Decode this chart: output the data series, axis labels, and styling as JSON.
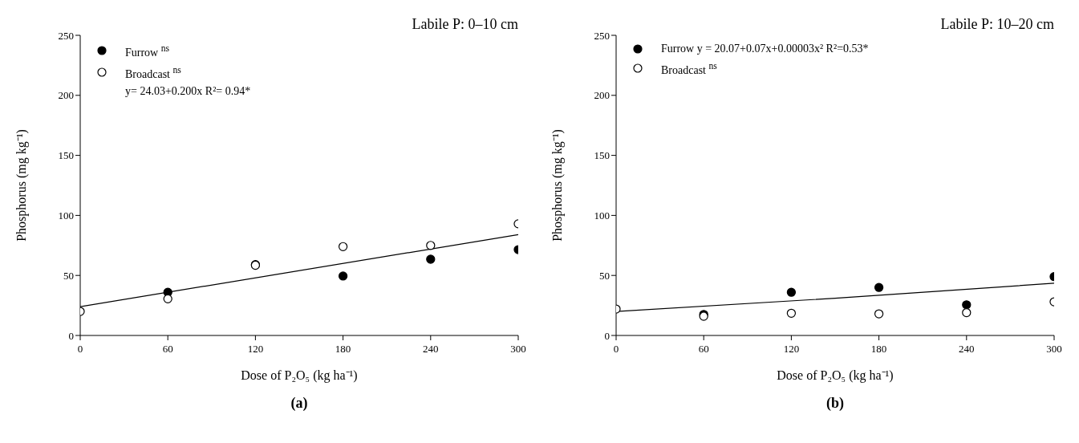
{
  "chart_data": [
    {
      "type": "scatter",
      "title": "Labile P: 0–10 cm",
      "xlabel": "Dose of P₂O₅ (kg ha⁻¹)",
      "ylabel": "Phosphorus (mg kg⁻¹)",
      "x": [
        0,
        60,
        120,
        180,
        240,
        300
      ],
      "xlim": [
        0,
        300
      ],
      "xticks": [
        0,
        60,
        120,
        180,
        240,
        300
      ],
      "ylim": [
        0,
        250
      ],
      "yticks": [
        0,
        50,
        100,
        150,
        200,
        250
      ],
      "marker": "circle",
      "legend": "top left",
      "annotations": [
        "y= 24.03+0.200x R²= 0.94*",
        "(a)"
      ],
      "series": [
        {
          "name": "Furrow $^{ns}$",
          "color": "#000000",
          "values": [
            null,
            36,
            59,
            49.5,
            63.5,
            71.5
          ]
        },
        {
          "name": "Broadcast $^{ns}$",
          "color": "#ffffff",
          "values": [
            20,
            30.5,
            58.5,
            74,
            75,
            93
          ]
        },
        {
          "type": "line",
          "color": "#000000",
          "marker": "none",
          "x": [
            0,
            300
          ],
          "values": [
            24,
            84
          ]
        }
      ]
    },
    {
      "type": "scatter",
      "title": "Labile P: 10–20 cm",
      "xlabel": "Dose of P₂O₅ (kg ha⁻¹)",
      "ylabel": "Phosphorus (mg kg⁻¹)",
      "x": [
        0,
        60,
        120,
        180,
        240,
        300
      ],
      "xlim": [
        0,
        300
      ],
      "xticks": [
        0,
        60,
        120,
        180,
        240,
        300
      ],
      "ylim": [
        0,
        250
      ],
      "yticks": [
        0,
        50,
        100,
        150,
        200,
        250
      ],
      "marker": "circle",
      "legend": "top left",
      "annotations": [
        "(b)"
      ],
      "series": [
        {
          "name": "Furrow  y = 20.07+0.07x+0.00003x² R²=0.53*",
          "color": "#000000",
          "values": [
            null,
            17.5,
            36,
            40,
            25.5,
            49
          ]
        },
        {
          "name": "Broadcast $^{ns}$",
          "color": "#ffffff",
          "values": [
            22,
            16,
            18.5,
            18,
            19,
            28
          ]
        },
        {
          "type": "line",
          "color": "#000000",
          "marker": "none",
          "x": [
            0,
            150,
            300
          ],
          "values": [
            20,
            31,
            43.5
          ]
        }
      ]
    }
  ]
}
